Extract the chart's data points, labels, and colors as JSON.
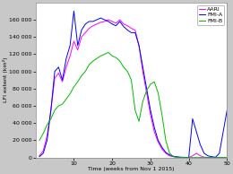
{
  "title": "",
  "xlabel": "Time (weeks from Nov 1 2015)",
  "ylabel": "LFI extent (km²)",
  "xlim": [
    0,
    50
  ],
  "ylim": [
    0,
    180000
  ],
  "yticks": [
    0,
    20000,
    40000,
    60000,
    80000,
    100000,
    120000,
    140000,
    160000
  ],
  "ytick_labels": [
    "0",
    "20 000",
    "40 000",
    "60 000",
    "80 000",
    "100 000",
    "120 000",
    "140 000",
    "160 000"
  ],
  "xticks": [
    10,
    20,
    30,
    40,
    50
  ],
  "legend_entries": [
    "AARI",
    "FMI-A",
    "FMI-B"
  ],
  "colors": {
    "AARI": "#ff00ff",
    "FMI-A": "#0000ff",
    "FMI-B": "#00bb00"
  },
  "background_color": "#c8c8c8",
  "plot_bg": "#ffffff",
  "AARI_x": [
    1,
    2,
    3,
    4,
    5,
    6,
    7,
    8,
    9,
    10,
    11,
    12,
    13,
    14,
    15,
    16,
    17,
    18,
    19,
    20,
    21,
    22,
    23,
    24,
    25,
    26,
    27,
    28,
    29,
    30,
    31,
    32,
    33,
    34,
    35,
    36,
    37,
    38,
    39,
    40,
    41,
    42,
    43,
    44,
    45,
    46,
    47,
    48,
    49,
    50
  ],
  "AARI_y": [
    2000,
    8000,
    25000,
    55000,
    92000,
    98000,
    88000,
    105000,
    118000,
    135000,
    125000,
    140000,
    145000,
    150000,
    153000,
    155000,
    157000,
    158000,
    160000,
    158000,
    156000,
    160000,
    155000,
    153000,
    150000,
    148000,
    130000,
    100000,
    75000,
    50000,
    30000,
    18000,
    10000,
    5000,
    2000,
    1000,
    500,
    200,
    100,
    50,
    2000,
    5000,
    2000,
    500,
    100,
    50,
    20,
    10,
    5,
    2
  ],
  "FMI_A_x": [
    1,
    2,
    3,
    4,
    5,
    6,
    7,
    8,
    9,
    10,
    11,
    12,
    13,
    14,
    15,
    16,
    17,
    18,
    19,
    20,
    21,
    22,
    23,
    24,
    25,
    26,
    27,
    28,
    29,
    30,
    31,
    32,
    33,
    34,
    35,
    36,
    37,
    38,
    39,
    40,
    41,
    42,
    43,
    44,
    45,
    46,
    47,
    48,
    49,
    50
  ],
  "FMI_A_y": [
    1000,
    5000,
    20000,
    55000,
    100000,
    105000,
    90000,
    115000,
    130000,
    170000,
    130000,
    148000,
    155000,
    158000,
    158000,
    160000,
    162000,
    160000,
    158000,
    155000,
    153000,
    158000,
    152000,
    148000,
    145000,
    145000,
    130000,
    105000,
    80000,
    55000,
    35000,
    20000,
    12000,
    6000,
    3000,
    1500,
    800,
    400,
    200,
    100,
    45000,
    30000,
    15000,
    5000,
    2000,
    1000,
    400,
    5000,
    30000,
    55000
  ],
  "FMI_B_x": [
    1,
    2,
    3,
    4,
    5,
    6,
    7,
    8,
    9,
    10,
    11,
    12,
    13,
    14,
    15,
    16,
    17,
    18,
    19,
    20,
    21,
    22,
    23,
    24,
    25,
    26,
    27,
    28,
    29,
    30,
    31,
    32,
    33,
    34,
    35,
    36,
    37,
    38,
    39,
    40,
    41,
    42,
    43,
    44,
    45,
    46,
    47,
    48,
    49,
    50
  ],
  "FMI_B_y": [
    20000,
    28000,
    38000,
    45000,
    55000,
    60000,
    62000,
    68000,
    74000,
    82000,
    88000,
    95000,
    100000,
    108000,
    112000,
    115000,
    118000,
    120000,
    122000,
    118000,
    116000,
    112000,
    105000,
    100000,
    90000,
    55000,
    42000,
    65000,
    78000,
    85000,
    88000,
    75000,
    50000,
    20000,
    5000,
    1000,
    200,
    50,
    10,
    0,
    0,
    0,
    0,
    0,
    0,
    0,
    0,
    0,
    0,
    0
  ]
}
